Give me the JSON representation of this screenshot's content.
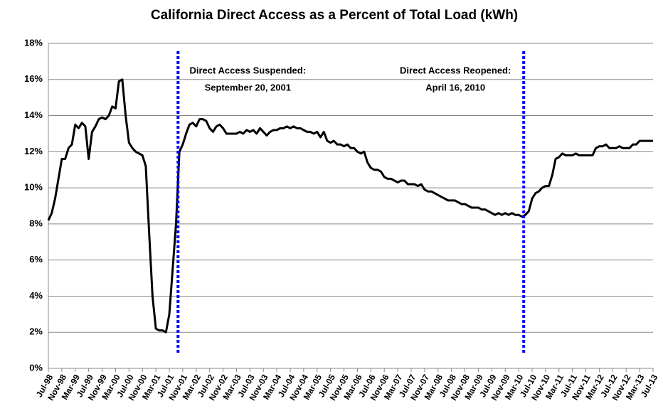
{
  "chart_data": {
    "type": "line",
    "title": "California Direct Access as a Percent of Total Load (kWh)",
    "categories": [
      "Jul-98",
      null,
      null,
      null,
      "Nov-98",
      null,
      null,
      null,
      "Mar-99",
      null,
      null,
      null,
      "Jul-99",
      null,
      null,
      null,
      "Nov-99",
      null,
      null,
      null,
      "Mar-00",
      null,
      null,
      null,
      "Jul-00",
      null,
      null,
      null,
      "Nov-00",
      null,
      null,
      null,
      "Mar-01",
      null,
      null,
      null,
      "Jul-01",
      null,
      null,
      null,
      "Nov-01",
      null,
      null,
      null,
      "Mar-02",
      null,
      null,
      null,
      "Jul-02",
      null,
      null,
      null,
      "Nov-02",
      null,
      null,
      null,
      "Mar-03",
      null,
      null,
      null,
      "Jul-03",
      null,
      null,
      null,
      "Nov-03",
      null,
      null,
      null,
      "Mar-04",
      null,
      null,
      null,
      "Jul-04",
      null,
      null,
      null,
      "Nov-04",
      null,
      null,
      null,
      "Mar-05",
      null,
      null,
      null,
      "Jul-05",
      null,
      null,
      null,
      "Nov-05",
      null,
      null,
      null,
      "Mar-06",
      null,
      null,
      null,
      "Jul-06",
      null,
      null,
      null,
      "Nov-06",
      null,
      null,
      null,
      "Mar-07",
      null,
      null,
      null,
      "Jul-07",
      null,
      null,
      null,
      "Nov-07",
      null,
      null,
      null,
      "Mar-08",
      null,
      null,
      null,
      "Jul-08",
      null,
      null,
      null,
      "Nov-08",
      null,
      null,
      null,
      "Mar-09",
      null,
      null,
      null,
      "Jul-09",
      null,
      null,
      null,
      "Nov-09",
      null,
      null,
      null,
      "Mar-10",
      null,
      null,
      null,
      "Jul-10",
      null,
      null,
      null,
      "Nov-10",
      null,
      null,
      null,
      "Mar-11",
      null,
      null,
      null,
      "Jul-11",
      null,
      null,
      null,
      "Nov-11",
      null,
      null,
      null,
      "Mar-12",
      null,
      null,
      null,
      "Jul-12",
      null,
      null,
      null,
      "Nov-12",
      null,
      null,
      null,
      "Mar-13",
      null,
      null,
      null,
      "Jul-13"
    ],
    "values": [
      8.2,
      8.6,
      9.4,
      10.5,
      11.6,
      11.6,
      12.2,
      12.4,
      13.5,
      13.3,
      13.6,
      13.4,
      11.6,
      13.1,
      13.4,
      13.8,
      13.9,
      13.8,
      14.0,
      14.5,
      14.4,
      15.9,
      16.0,
      14.0,
      12.5,
      12.2,
      12.0,
      11.9,
      11.8,
      11.2,
      7.5,
      4.0,
      2.2,
      2.1,
      2.1,
      2.0,
      3.0,
      5.5,
      8.0,
      12.0,
      12.4,
      13.0,
      13.5,
      13.6,
      13.4,
      13.8,
      13.8,
      13.7,
      13.3,
      13.1,
      13.4,
      13.5,
      13.3,
      13.0,
      13.0,
      13.0,
      13.0,
      13.1,
      13.0,
      13.2,
      13.1,
      13.2,
      13.0,
      13.3,
      13.1,
      12.9,
      13.1,
      13.2,
      13.2,
      13.3,
      13.3,
      13.4,
      13.3,
      13.4,
      13.3,
      13.3,
      13.2,
      13.1,
      13.1,
      13.0,
      13.1,
      12.8,
      13.1,
      12.6,
      12.5,
      12.6,
      12.4,
      12.4,
      12.3,
      12.4,
      12.2,
      12.2,
      12.0,
      11.9,
      12.0,
      11.4,
      11.1,
      11.0,
      11.0,
      10.9,
      10.6,
      10.5,
      10.5,
      10.4,
      10.3,
      10.4,
      10.4,
      10.2,
      10.2,
      10.2,
      10.1,
      10.2,
      9.9,
      9.8,
      9.8,
      9.7,
      9.6,
      9.5,
      9.4,
      9.3,
      9.3,
      9.3,
      9.2,
      9.1,
      9.1,
      9.0,
      8.9,
      8.9,
      8.9,
      8.8,
      8.8,
      8.7,
      8.6,
      8.5,
      8.6,
      8.5,
      8.6,
      8.5,
      8.6,
      8.5,
      8.5,
      8.4,
      8.5,
      8.7,
      9.4,
      9.7,
      9.8,
      10.0,
      10.1,
      10.1,
      10.7,
      11.6,
      11.7,
      11.9,
      11.8,
      11.8,
      11.8,
      11.9,
      11.8,
      11.8,
      11.8,
      11.8,
      11.8,
      12.2,
      12.3,
      12.3,
      12.4,
      12.2,
      12.2,
      12.2,
      12.3,
      12.2,
      12.2,
      12.2,
      12.4,
      12.4,
      12.6,
      12.6,
      12.6,
      12.6,
      12.6
    ],
    "color": "#000000",
    "ylim": [
      0,
      18
    ],
    "yticks": [
      {
        "value": 0,
        "label": "0%"
      },
      {
        "value": 2,
        "label": "2%"
      },
      {
        "value": 4,
        "label": "4%"
      },
      {
        "value": 6,
        "label": "6%"
      },
      {
        "value": 8,
        "label": "8%"
      },
      {
        "value": 10,
        "label": "10%"
      },
      {
        "value": 12,
        "label": "12%"
      },
      {
        "value": 14,
        "label": "14%"
      },
      {
        "value": 16,
        "label": "16%"
      },
      {
        "value": 18,
        "label": "18%"
      }
    ],
    "grid": true,
    "annotations": [
      {
        "lines": [
          "Direct Access Suspended:",
          "September 20, 2001"
        ],
        "x": 38.6,
        "color": "#0000ff"
      },
      {
        "lines": [
          "Direct Access Reopened:",
          "April 16, 2010"
        ],
        "x": 141.5,
        "color": "#0000ff"
      }
    ]
  }
}
